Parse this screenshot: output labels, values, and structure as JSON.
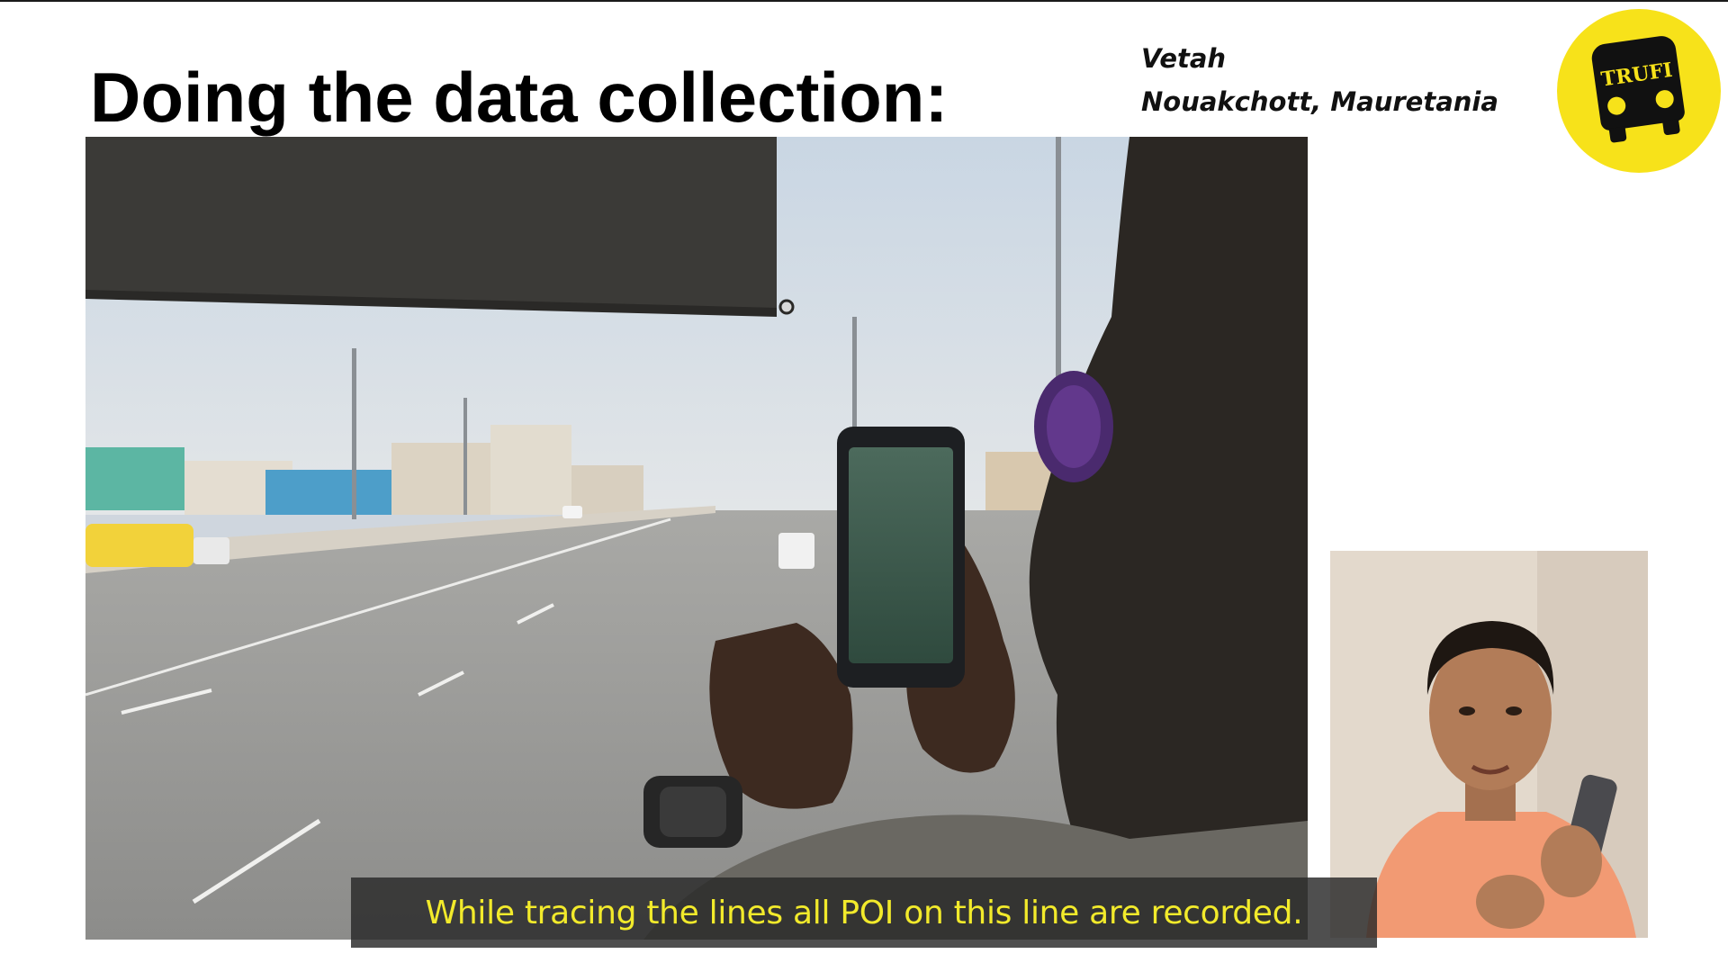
{
  "slide": {
    "title": "Doing the data collection:",
    "speaker_name": "Vetah",
    "speaker_location": "Nouakchott, Mauretania"
  },
  "logo": {
    "text": "TRUFI",
    "background_color": "#f7e21a",
    "icon": "bus-icon"
  },
  "caption": {
    "text": "While tracing the lines all POI on this line are recorded."
  },
  "colors": {
    "caption_text": "#f2ea2b",
    "caption_background": "#282828"
  }
}
